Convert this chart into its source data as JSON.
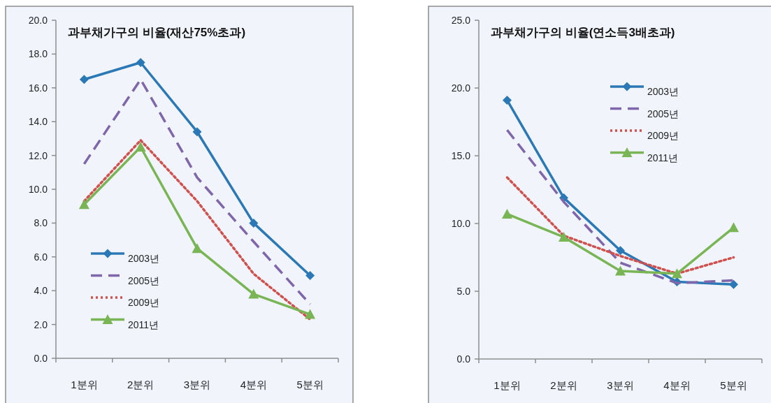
{
  "chart_data": [
    {
      "type": "line",
      "title": "과부채가구의 비율(재산75%초과)",
      "categories": [
        "1분위",
        "2분위",
        "3분위",
        "4분위",
        "5분위"
      ],
      "ylim": [
        0,
        20
      ],
      "yticks": [
        {
          "value": 0,
          "label": "0.0"
        },
        {
          "value": 2,
          "label": "2.0"
        },
        {
          "value": 4,
          "label": "4.0"
        },
        {
          "value": 6,
          "label": "6.0"
        },
        {
          "value": 8,
          "label": "8.0"
        },
        {
          "value": 10,
          "label": "10.0"
        },
        {
          "value": 12,
          "label": "12.0"
        },
        {
          "value": 14,
          "label": "14.0"
        },
        {
          "value": 16,
          "label": "16.0"
        },
        {
          "value": 18,
          "label": "18.0"
        },
        {
          "value": 20,
          "label": "20.0"
        }
      ],
      "grid": false,
      "legend": "bottom left",
      "series": [
        {
          "name": "2003년",
          "color": "#2b78b6",
          "marker": "diamond",
          "line_style": "solid",
          "values": [
            16.5,
            17.5,
            13.4,
            8.0,
            4.9
          ]
        },
        {
          "name": "2005년",
          "color": "#7f66aa",
          "marker": "none",
          "line_style": "dashed",
          "values": [
            11.5,
            16.5,
            10.7,
            6.9,
            3.2
          ]
        },
        {
          "name": "2009년",
          "color": "#d0504d",
          "marker": "none",
          "line_style": "dotted",
          "values": [
            9.3,
            12.9,
            9.3,
            5.0,
            2.3
          ]
        },
        {
          "name": "2011년",
          "color": "#79b555",
          "marker": "triangle",
          "line_style": "solid",
          "values": [
            9.1,
            12.5,
            6.5,
            3.8,
            2.6
          ]
        }
      ]
    },
    {
      "type": "line",
      "title": "과부채가구의 비율(연소득3배초과)",
      "categories": [
        "1분위",
        "2분위",
        "3분위",
        "4분위",
        "5분위"
      ],
      "ylim": [
        0,
        25
      ],
      "yticks": [
        {
          "value": 0,
          "label": "0.0"
        },
        {
          "value": 5,
          "label": "5.0"
        },
        {
          "value": 10,
          "label": "10.0"
        },
        {
          "value": 15,
          "label": "15.0"
        },
        {
          "value": 20,
          "label": "20.0"
        },
        {
          "value": 25,
          "label": "25.0"
        }
      ],
      "grid": false,
      "legend": "top right",
      "series": [
        {
          "name": "2003년",
          "color": "#2b78b6",
          "marker": "diamond",
          "line_style": "solid",
          "values": [
            19.1,
            11.9,
            8.0,
            5.7,
            5.5
          ]
        },
        {
          "name": "2005년",
          "color": "#7f66aa",
          "marker": "none",
          "line_style": "dashed",
          "values": [
            16.9,
            11.6,
            7.1,
            5.6,
            5.8
          ]
        },
        {
          "name": "2009년",
          "color": "#d0504d",
          "marker": "none",
          "line_style": "dotted",
          "values": [
            13.4,
            9.1,
            7.6,
            6.3,
            7.5
          ]
        },
        {
          "name": "2011년",
          "color": "#79b555",
          "marker": "triangle",
          "line_style": "solid",
          "values": [
            10.7,
            9.0,
            6.5,
            6.3,
            9.7
          ]
        }
      ]
    }
  ]
}
